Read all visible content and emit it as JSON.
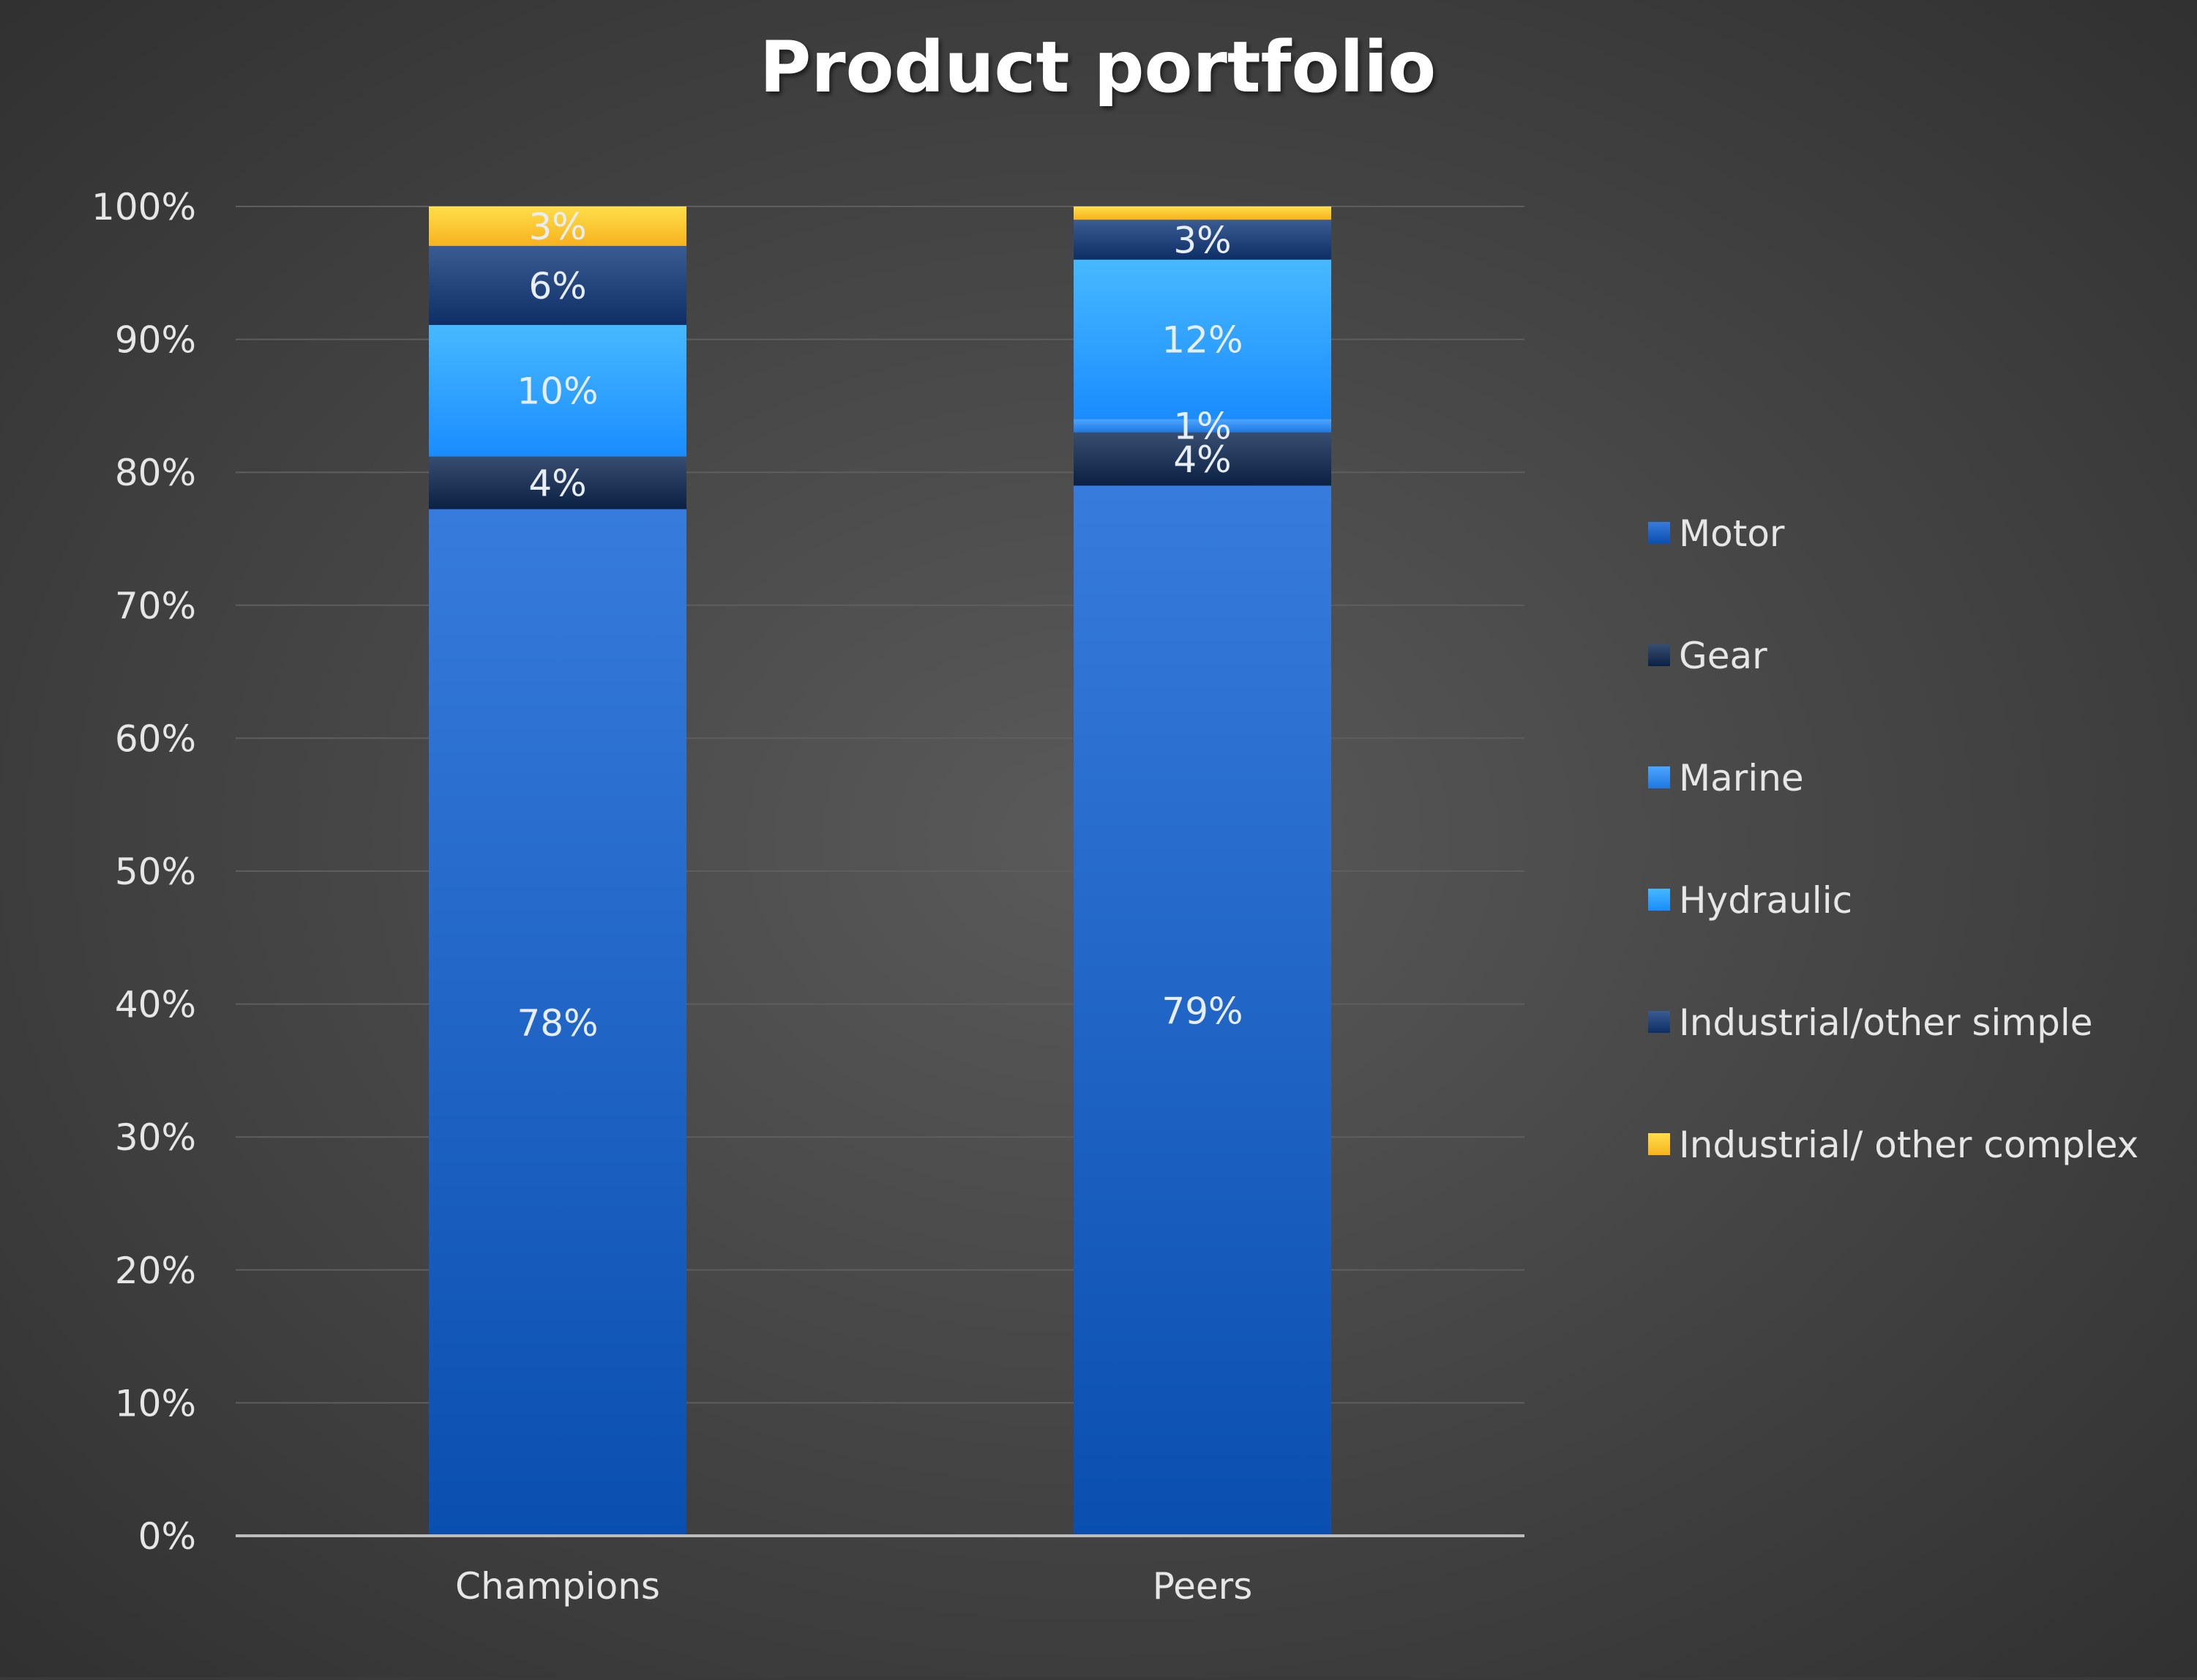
{
  "chart_data": {
    "type": "bar",
    "stacked": true,
    "title": "Product portfolio",
    "categories": [
      "Champions",
      "Peers"
    ],
    "series": [
      {
        "name": "Motor",
        "values": [
          78,
          79
        ],
        "labels": [
          "78%",
          "79%"
        ],
        "color": "#0a4fb0"
      },
      {
        "name": "Gear",
        "values": [
          4,
          4
        ],
        "labels": [
          "4%",
          "4%"
        ],
        "color": "#0b2144"
      },
      {
        "name": "Marine",
        "values": [
          0,
          1
        ],
        "labels": [
          "",
          "1%"
        ],
        "color": "#1f78e0"
      },
      {
        "name": "Hydraulic",
        "values": [
          10,
          12
        ],
        "labels": [
          "10%",
          "12%"
        ],
        "color": "#1a8cff"
      },
      {
        "name": "Industrial/other simple",
        "values": [
          6,
          3
        ],
        "labels": [
          "6%",
          "3%"
        ],
        "color": "#0d2f66"
      },
      {
        "name": "Industrial/ other complex",
        "values": [
          3,
          1
        ],
        "labels": [
          "3%",
          ""
        ],
        "color": "#f7b21e"
      }
    ],
    "ylim": [
      0,
      100
    ],
    "yticks": [
      0,
      10,
      20,
      30,
      40,
      50,
      60,
      70,
      80,
      90,
      100
    ],
    "ytick_labels": [
      "0%",
      "10%",
      "20%",
      "30%",
      "40%",
      "50%",
      "60%",
      "70%",
      "80%",
      "90%",
      "100%"
    ],
    "grid": true,
    "legend_position": "right",
    "colors": {
      "background": "#444444",
      "text": "#e6e6e6",
      "title": "#ffffff",
      "grid": "#5e5e5e",
      "axis": "#bdbdbd"
    }
  }
}
